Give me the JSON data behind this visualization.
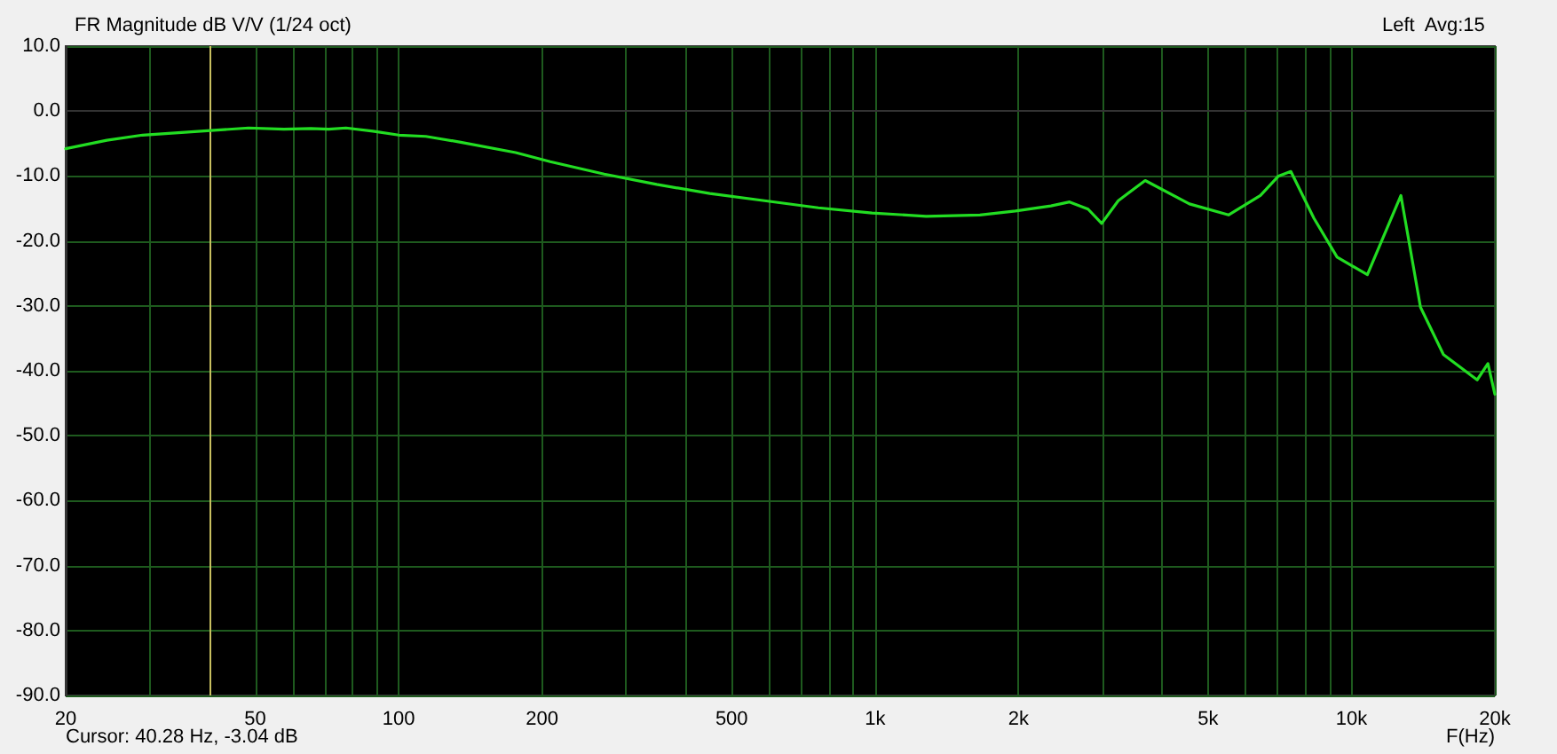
{
  "chart_data": {
    "type": "line",
    "title": "FR Magnitude dB V/V (1/24 oct)",
    "xlabel": "F(Hz)",
    "annotations": [
      "Left  Avg:15",
      "Cursor: 40.28 Hz, -3.04 dB"
    ],
    "log": "x",
    "grid": true,
    "marker": "none",
    "line_style": "solid",
    "xlim": [
      20,
      20000
    ],
    "xticks": [
      20,
      {
        "value": 30,
        "label": null
      },
      {
        "value": 40,
        "label": null
      },
      50,
      {
        "value": 60,
        "label": null
      },
      {
        "value": 70,
        "label": null
      },
      {
        "value": 80,
        "label": null
      },
      {
        "value": 90,
        "label": null
      },
      100,
      200,
      {
        "value": 300,
        "label": null
      },
      {
        "value": 400,
        "label": null
      },
      500,
      {
        "value": 600,
        "label": null
      },
      {
        "value": 700,
        "label": null
      },
      {
        "value": 800,
        "label": null
      },
      {
        "value": 900,
        "label": null
      },
      {
        "value": 1000,
        "label": "1k"
      },
      {
        "value": 2000,
        "label": "2k"
      },
      {
        "value": 3000,
        "label": null
      },
      {
        "value": 4000,
        "label": null
      },
      {
        "value": 5000,
        "label": "5k"
      },
      {
        "value": 6000,
        "label": null
      },
      {
        "value": 7000,
        "label": null
      },
      {
        "value": 8000,
        "label": null
      },
      {
        "value": 9000,
        "label": null
      },
      {
        "value": 10000,
        "label": "10k"
      },
      {
        "value": 20000,
        "label": "20k"
      }
    ],
    "ylim": [
      -90,
      10
    ],
    "yticks": [
      {
        "value": -90,
        "label": "-90.0"
      },
      {
        "value": -80,
        "label": "-80.0"
      },
      {
        "value": -70,
        "label": "-70.0"
      },
      {
        "value": -60,
        "label": "-60.0"
      },
      {
        "value": -50,
        "label": "-50.0"
      },
      {
        "value": -40,
        "label": "-40.0"
      },
      {
        "value": -30,
        "label": "-30.0"
      },
      {
        "value": -20,
        "label": "-20.0"
      },
      {
        "value": -10,
        "label": "-10.0"
      },
      {
        "value": 0,
        "label": "0.0"
      },
      {
        "value": 10,
        "label": "10.0"
      }
    ],
    "ref_lines": [
      {
        "axis": "x",
        "value": 40.28,
        "color": "#c8c060"
      }
    ],
    "series": [
      {
        "color": "#22dd22",
        "x": [
          20,
          24.4,
          29,
          40.3,
          48.4,
          57.4,
          65.4,
          71.3,
          77.5,
          88.3,
          100,
          114,
          135,
          176,
          208,
          270,
          348,
          450,
          586,
          760,
          985,
          1280,
          1660,
          1970,
          2340,
          2560,
          2800,
          2990,
          3240,
          3690,
          4570,
          5520,
          6440,
          7030,
          7460,
          8340,
          9330,
          10800,
          12700,
          13960,
          15600,
          18360,
          19340,
          20000
        ],
        "values": [
          -5.8,
          -4.5,
          -3.7,
          -3.0,
          -2.6,
          -2.8,
          -2.7,
          -2.8,
          -2.6,
          -3.1,
          -3.7,
          -3.9,
          -4.8,
          -6.4,
          -7.8,
          -9.7,
          -11.3,
          -12.7,
          -13.8,
          -14.9,
          -15.7,
          -16.2,
          -16.0,
          -15.4,
          -14.6,
          -14.0,
          -15.1,
          -17.3,
          -13.8,
          -10.7,
          -14.3,
          -16.0,
          -13.0,
          -10.0,
          -9.3,
          -16.5,
          -22.5,
          -25.2,
          -13.0,
          -30.2,
          -37.5,
          -41.4,
          -38.9,
          -43.6
        ]
      }
    ]
  }
}
